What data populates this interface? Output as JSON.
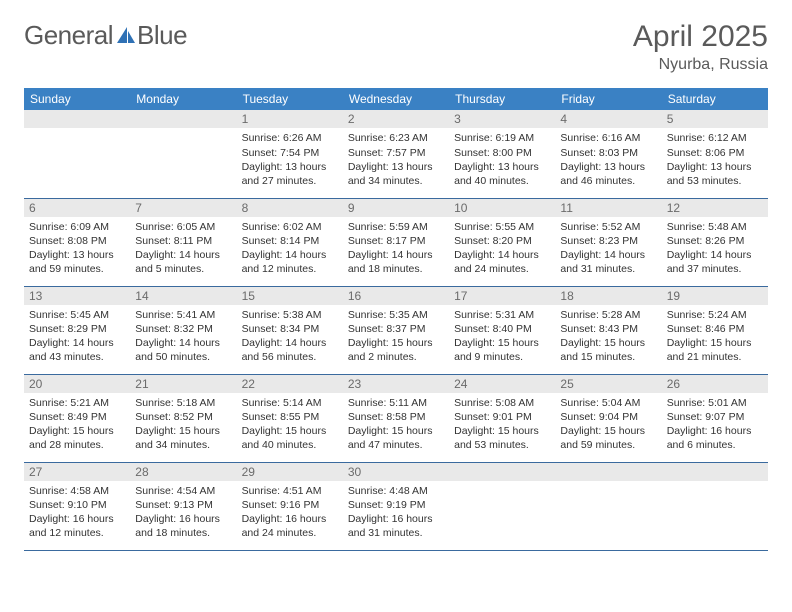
{
  "brand": {
    "name1": "General",
    "name2": "Blue",
    "accent_color": "#2f71b5"
  },
  "header": {
    "title": "April 2025",
    "location": "Nyurba, Russia"
  },
  "style": {
    "page_bg": "#ffffff",
    "header_bg": "#3a81c4",
    "header_text": "#ffffff",
    "daynum_bg": "#e9e9e9",
    "daynum_text": "#6b6b6b",
    "cell_border": "#3a6a9e",
    "body_font_size": 10.5,
    "title_font_size": 30,
    "location_font_size": 16,
    "logo_font_size": 26
  },
  "calendar": {
    "columns": [
      "Sunday",
      "Monday",
      "Tuesday",
      "Wednesday",
      "Thursday",
      "Friday",
      "Saturday"
    ],
    "weeks": [
      [
        null,
        null,
        {
          "n": "1",
          "sr": "6:26 AM",
          "ss": "7:54 PM",
          "dl": "13 hours and 27 minutes."
        },
        {
          "n": "2",
          "sr": "6:23 AM",
          "ss": "7:57 PM",
          "dl": "13 hours and 34 minutes."
        },
        {
          "n": "3",
          "sr": "6:19 AM",
          "ss": "8:00 PM",
          "dl": "13 hours and 40 minutes."
        },
        {
          "n": "4",
          "sr": "6:16 AM",
          "ss": "8:03 PM",
          "dl": "13 hours and 46 minutes."
        },
        {
          "n": "5",
          "sr": "6:12 AM",
          "ss": "8:06 PM",
          "dl": "13 hours and 53 minutes."
        }
      ],
      [
        {
          "n": "6",
          "sr": "6:09 AM",
          "ss": "8:08 PM",
          "dl": "13 hours and 59 minutes."
        },
        {
          "n": "7",
          "sr": "6:05 AM",
          "ss": "8:11 PM",
          "dl": "14 hours and 5 minutes."
        },
        {
          "n": "8",
          "sr": "6:02 AM",
          "ss": "8:14 PM",
          "dl": "14 hours and 12 minutes."
        },
        {
          "n": "9",
          "sr": "5:59 AM",
          "ss": "8:17 PM",
          "dl": "14 hours and 18 minutes."
        },
        {
          "n": "10",
          "sr": "5:55 AM",
          "ss": "8:20 PM",
          "dl": "14 hours and 24 minutes."
        },
        {
          "n": "11",
          "sr": "5:52 AM",
          "ss": "8:23 PM",
          "dl": "14 hours and 31 minutes."
        },
        {
          "n": "12",
          "sr": "5:48 AM",
          "ss": "8:26 PM",
          "dl": "14 hours and 37 minutes."
        }
      ],
      [
        {
          "n": "13",
          "sr": "5:45 AM",
          "ss": "8:29 PM",
          "dl": "14 hours and 43 minutes."
        },
        {
          "n": "14",
          "sr": "5:41 AM",
          "ss": "8:32 PM",
          "dl": "14 hours and 50 minutes."
        },
        {
          "n": "15",
          "sr": "5:38 AM",
          "ss": "8:34 PM",
          "dl": "14 hours and 56 minutes."
        },
        {
          "n": "16",
          "sr": "5:35 AM",
          "ss": "8:37 PM",
          "dl": "15 hours and 2 minutes."
        },
        {
          "n": "17",
          "sr": "5:31 AM",
          "ss": "8:40 PM",
          "dl": "15 hours and 9 minutes."
        },
        {
          "n": "18",
          "sr": "5:28 AM",
          "ss": "8:43 PM",
          "dl": "15 hours and 15 minutes."
        },
        {
          "n": "19",
          "sr": "5:24 AM",
          "ss": "8:46 PM",
          "dl": "15 hours and 21 minutes."
        }
      ],
      [
        {
          "n": "20",
          "sr": "5:21 AM",
          "ss": "8:49 PM",
          "dl": "15 hours and 28 minutes."
        },
        {
          "n": "21",
          "sr": "5:18 AM",
          "ss": "8:52 PM",
          "dl": "15 hours and 34 minutes."
        },
        {
          "n": "22",
          "sr": "5:14 AM",
          "ss": "8:55 PM",
          "dl": "15 hours and 40 minutes."
        },
        {
          "n": "23",
          "sr": "5:11 AM",
          "ss": "8:58 PM",
          "dl": "15 hours and 47 minutes."
        },
        {
          "n": "24",
          "sr": "5:08 AM",
          "ss": "9:01 PM",
          "dl": "15 hours and 53 minutes."
        },
        {
          "n": "25",
          "sr": "5:04 AM",
          "ss": "9:04 PM",
          "dl": "15 hours and 59 minutes."
        },
        {
          "n": "26",
          "sr": "5:01 AM",
          "ss": "9:07 PM",
          "dl": "16 hours and 6 minutes."
        }
      ],
      [
        {
          "n": "27",
          "sr": "4:58 AM",
          "ss": "9:10 PM",
          "dl": "16 hours and 12 minutes."
        },
        {
          "n": "28",
          "sr": "4:54 AM",
          "ss": "9:13 PM",
          "dl": "16 hours and 18 minutes."
        },
        {
          "n": "29",
          "sr": "4:51 AM",
          "ss": "9:16 PM",
          "dl": "16 hours and 24 minutes."
        },
        {
          "n": "30",
          "sr": "4:48 AM",
          "ss": "9:19 PM",
          "dl": "16 hours and 31 minutes."
        },
        null,
        null,
        null
      ]
    ],
    "labels": {
      "sunrise": "Sunrise:",
      "sunset": "Sunset:",
      "daylight": "Daylight:"
    }
  }
}
